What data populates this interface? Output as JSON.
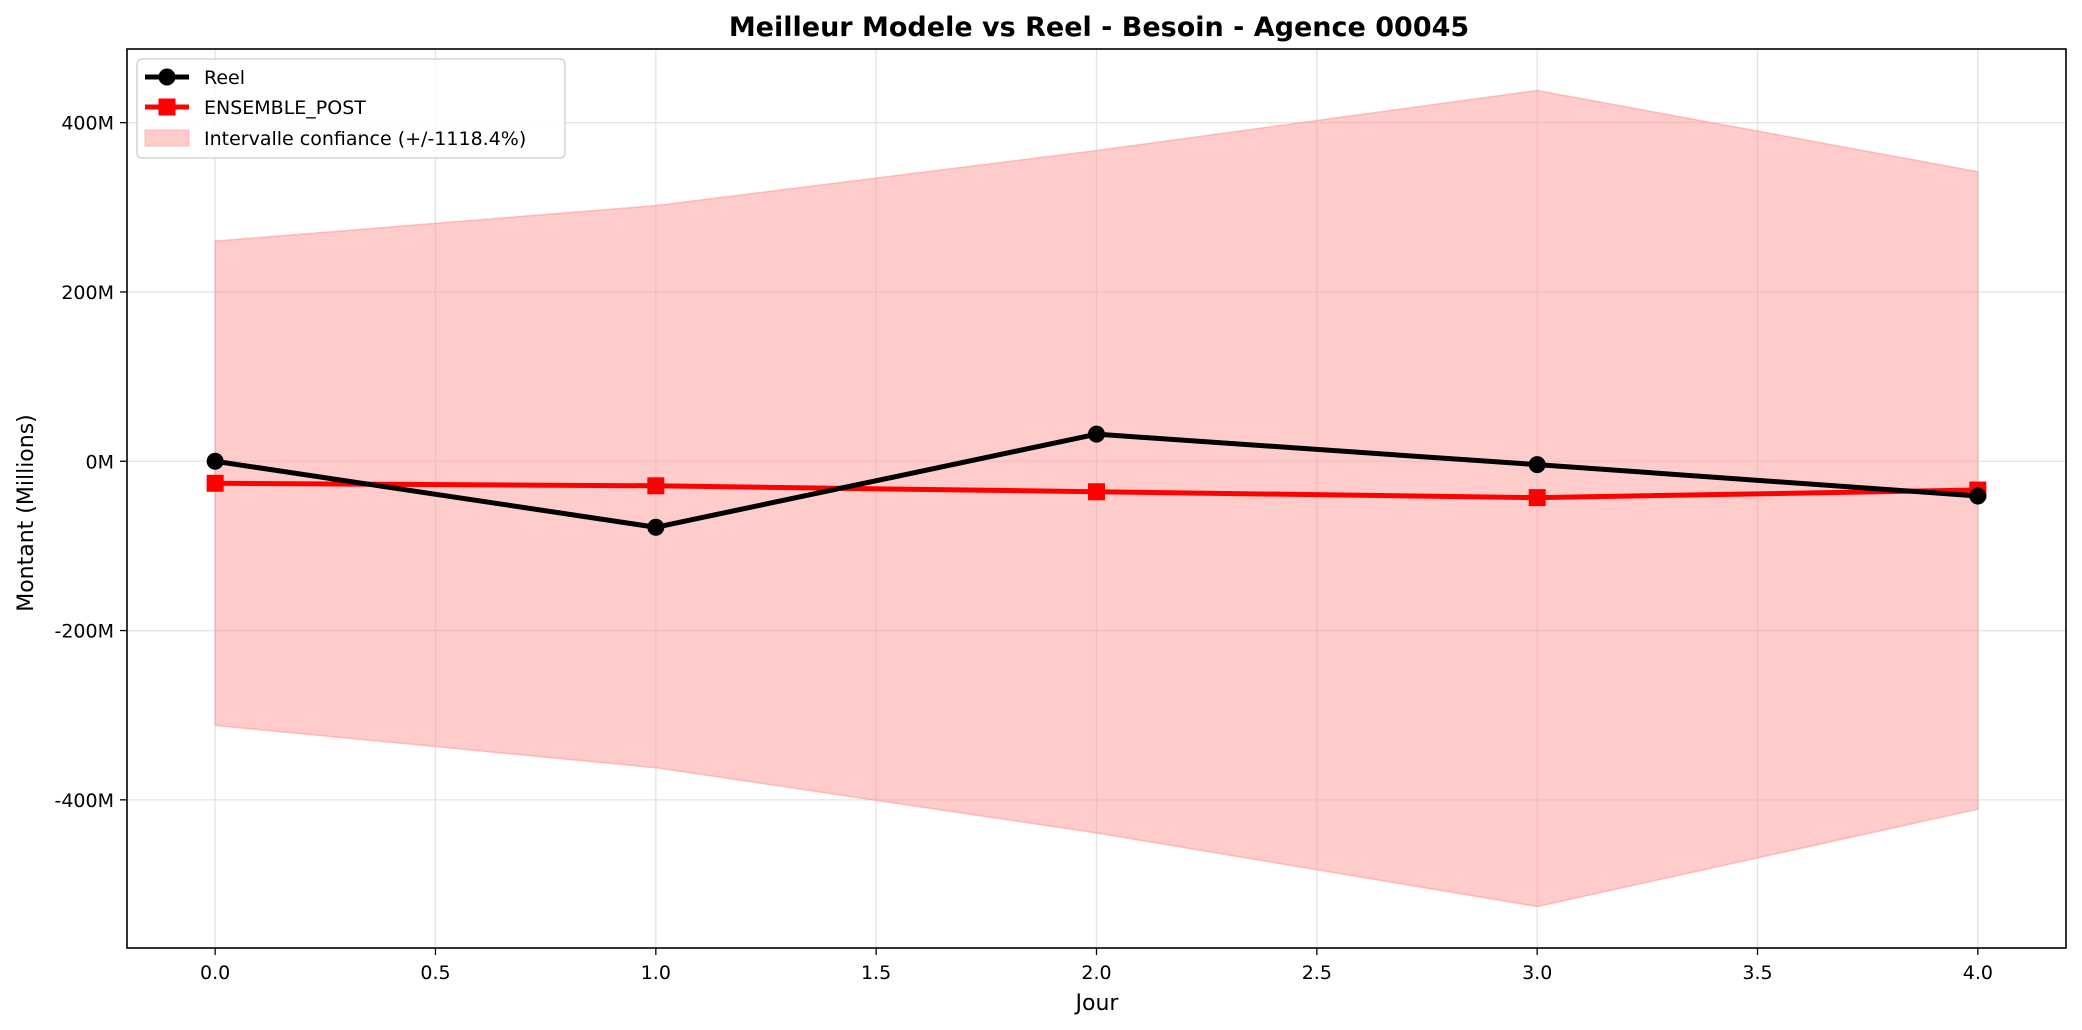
{
  "chart_data": {
    "type": "line",
    "title": "Meilleur Modele vs Reel - Besoin - Agence 00045",
    "xlabel": "Jour",
    "ylabel": "Montant (Millions)",
    "xlim": [
      -0.2,
      4.2
    ],
    "ylim": [
      -575,
      487
    ],
    "grid": true,
    "legend_position": "top-left",
    "x": [
      0,
      1,
      2,
      3,
      4
    ],
    "x_ticks": [
      0.0,
      0.5,
      1.0,
      1.5,
      2.0,
      2.5,
      3.0,
      3.5,
      4.0
    ],
    "x_tick_labels": [
      "0.0",
      "0.5",
      "1.0",
      "1.5",
      "2.0",
      "2.5",
      "3.0",
      "3.5",
      "4.0"
    ],
    "y_ticks": [
      400,
      200,
      0,
      -200,
      -400
    ],
    "y_tick_labels": [
      "400M",
      "200M",
      "0M",
      "-200M",
      "-400M"
    ],
    "series": [
      {
        "name": "Reel",
        "values": [
          0,
          -78,
          32,
          -4,
          -41
        ],
        "color": "#000000",
        "marker": "circle"
      },
      {
        "name": "ENSEMBLE_POST",
        "values": [
          -26,
          -29,
          -36,
          -43,
          -34
        ],
        "color": "#ff0000",
        "marker": "square"
      }
    ],
    "band": {
      "name": "Intervalle confiance (+/-1118.4%)",
      "upper": [
        260,
        302,
        367,
        438,
        342
      ],
      "lower": [
        -312,
        -362,
        -439,
        -526,
        -411
      ],
      "color": "#ff9999"
    }
  }
}
